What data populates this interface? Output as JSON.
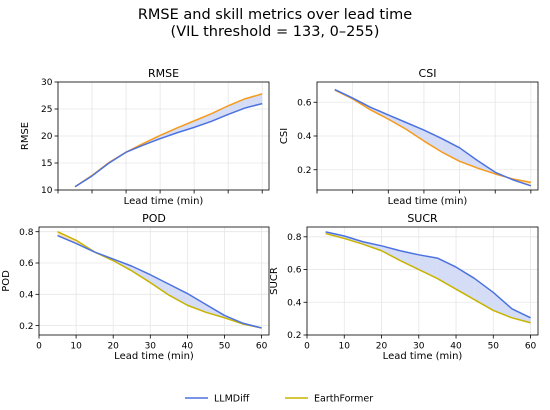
{
  "figure": {
    "title_line1": "RMSE and skill metrics over lead time",
    "title_line2": "(VIL threshold = 133, 0–255)"
  },
  "legend": {
    "position": "bottom-center",
    "entries": [
      {
        "label": "LLMDiff",
        "color": "#4c72e0"
      },
      {
        "label": "EarthFormer",
        "color": "#c8b400"
      }
    ]
  },
  "colors": {
    "llmdiff": "#4c72e0",
    "earthformer_line": "#f59b1c",
    "earthformer_line_bottom": "#c8b400",
    "fill_worse_llmdiff": "#fde3b8",
    "fill_better_llmdiff": "#d4dcf6",
    "grid": "#e6e6e6"
  },
  "chart_data": [
    {
      "type": "line",
      "title": "RMSE",
      "xlabel": "Lead time (min)",
      "ylabel": "RMSE",
      "xlim": [
        0,
        62
      ],
      "ylim": [
        10,
        30
      ],
      "xticks": [],
      "yticks": [
        10,
        15,
        20,
        25,
        30
      ],
      "ytick_labels": [
        "10",
        "15",
        "20",
        "25",
        "30"
      ],
      "grid": true,
      "x": [
        5,
        10,
        15,
        20,
        25,
        30,
        35,
        40,
        45,
        50,
        55,
        60
      ],
      "series": [
        {
          "name": "LLMDiff",
          "values": [
            10.6,
            12.6,
            15.0,
            17.0,
            18.3,
            19.5,
            20.6,
            21.6,
            22.7,
            24.0,
            25.2,
            26.0
          ]
        },
        {
          "name": "EarthFormer",
          "values": [
            10.6,
            12.7,
            15.1,
            17.0,
            18.6,
            20.1,
            21.5,
            22.8,
            24.1,
            25.6,
            26.9,
            27.8
          ]
        }
      ]
    },
    {
      "type": "line",
      "title": "CSI",
      "xlabel": "Lead time (min)",
      "ylabel": "CSI",
      "xlim": [
        0,
        62
      ],
      "ylim": [
        0.08,
        0.72
      ],
      "xticks": [],
      "yticks": [
        0.2,
        0.4,
        0.6
      ],
      "ytick_labels": [
        "0.2",
        "0.4",
        "0.6"
      ],
      "grid": true,
      "x": [
        5,
        10,
        15,
        20,
        25,
        30,
        35,
        40,
        45,
        50,
        55,
        60
      ],
      "series": [
        {
          "name": "LLMDiff",
          "values": [
            0.675,
            0.625,
            0.57,
            0.525,
            0.48,
            0.435,
            0.385,
            0.33,
            0.255,
            0.185,
            0.14,
            0.105
          ]
        },
        {
          "name": "EarthFormer",
          "values": [
            0.672,
            0.62,
            0.555,
            0.5,
            0.44,
            0.37,
            0.305,
            0.25,
            0.21,
            0.175,
            0.145,
            0.125
          ]
        }
      ]
    },
    {
      "type": "line",
      "title": "POD",
      "xlabel": "Lead time (min)",
      "ylabel": "POD",
      "xlim": [
        0,
        62
      ],
      "ylim": [
        0.14,
        0.83
      ],
      "xticks": [
        0,
        10,
        20,
        30,
        40,
        50,
        60
      ],
      "xtick_labels": [
        "0",
        "10",
        "20",
        "30",
        "40",
        "50",
        "60"
      ],
      "yticks": [
        0.2,
        0.4,
        0.6,
        0.8
      ],
      "ytick_labels": [
        "0.2",
        "0.4",
        "0.6",
        "0.8"
      ],
      "grid": true,
      "x": [
        5,
        10,
        15,
        20,
        25,
        30,
        35,
        40,
        45,
        50,
        55,
        60
      ],
      "series": [
        {
          "name": "LLMDiff",
          "values": [
            0.775,
            0.725,
            0.67,
            0.625,
            0.58,
            0.525,
            0.465,
            0.405,
            0.335,
            0.265,
            0.215,
            0.185
          ]
        },
        {
          "name": "EarthFormer",
          "values": [
            0.8,
            0.745,
            0.67,
            0.615,
            0.55,
            0.475,
            0.395,
            0.33,
            0.285,
            0.25,
            0.21,
            0.185
          ]
        }
      ]
    },
    {
      "type": "line",
      "title": "SUCR",
      "xlabel": "Lead time (min)",
      "ylabel": "SUCR",
      "xlim": [
        0,
        62
      ],
      "ylim": [
        0.2,
        0.86
      ],
      "xticks": [
        0,
        10,
        20,
        30,
        40,
        50,
        60
      ],
      "xtick_labels": [
        "0",
        "10",
        "20",
        "30",
        "40",
        "50",
        "60"
      ],
      "yticks": [
        0.2,
        0.4,
        0.6,
        0.8
      ],
      "ytick_labels": [
        "0.2",
        "0.4",
        "0.6",
        "0.8"
      ],
      "grid": true,
      "x": [
        5,
        10,
        15,
        20,
        25,
        30,
        35,
        40,
        45,
        50,
        55,
        60
      ],
      "series": [
        {
          "name": "LLMDiff",
          "values": [
            0.83,
            0.805,
            0.77,
            0.745,
            0.715,
            0.69,
            0.67,
            0.615,
            0.545,
            0.46,
            0.36,
            0.305
          ]
        },
        {
          "name": "EarthFormer",
          "values": [
            0.82,
            0.79,
            0.755,
            0.715,
            0.655,
            0.6,
            0.545,
            0.48,
            0.415,
            0.35,
            0.305,
            0.275
          ]
        }
      ]
    }
  ]
}
